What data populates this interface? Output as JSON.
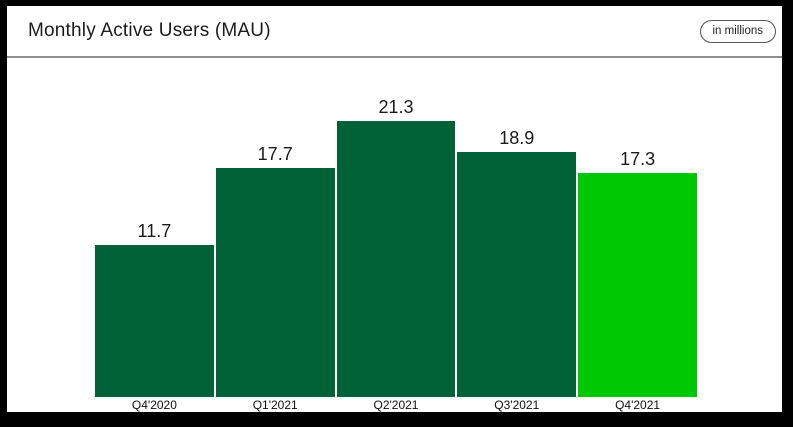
{
  "header": {
    "title": "Monthly Active Users (MAU)",
    "units_badge": "in millions"
  },
  "chart_data": {
    "type": "bar",
    "title": "Monthly Active Users (MAU)",
    "subtitle": "",
    "units": "in millions",
    "categories": [
      "Q4'2020",
      "Q1'2021",
      "Q2'2021",
      "Q3'2021",
      "Q4'2021"
    ],
    "values": [
      11.7,
      17.7,
      21.3,
      18.9,
      17.3
    ],
    "value_labels": [
      "11.7",
      "17.7",
      "21.3",
      "18.9",
      "17.3"
    ],
    "bar_colors": [
      "#006236",
      "#006236",
      "#006236",
      "#006236",
      "#00C805"
    ],
    "highlight_index": 4,
    "xlabel": "",
    "ylabel": "",
    "ylim": [
      0,
      21.3
    ],
    "grid": false,
    "legend_position": "none",
    "colors": {
      "dark_green": "#006236",
      "bright_green": "#00C805",
      "frame": "#000000",
      "divider": "#8f8f8f",
      "text": "#1c1c1c",
      "background": "#ffffff"
    }
  }
}
